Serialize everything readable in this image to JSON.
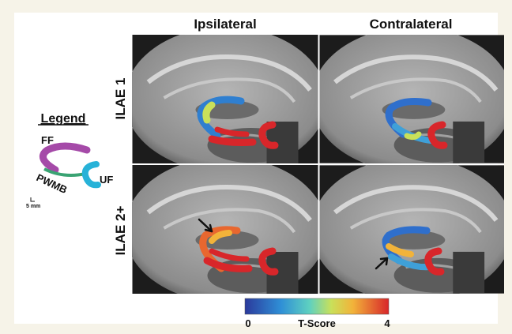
{
  "figure": {
    "columns": [
      "Ipsilateral",
      "Contralateral"
    ],
    "rows": [
      "ILAE 1",
      "ILAE 2+"
    ],
    "legend": {
      "title": "Legend",
      "labels": [
        "FF",
        "PWMB",
        "UF"
      ],
      "scale": "5 mm"
    },
    "colorbar": {
      "min": "0",
      "label": "T-Score",
      "max": "4"
    }
  }
}
